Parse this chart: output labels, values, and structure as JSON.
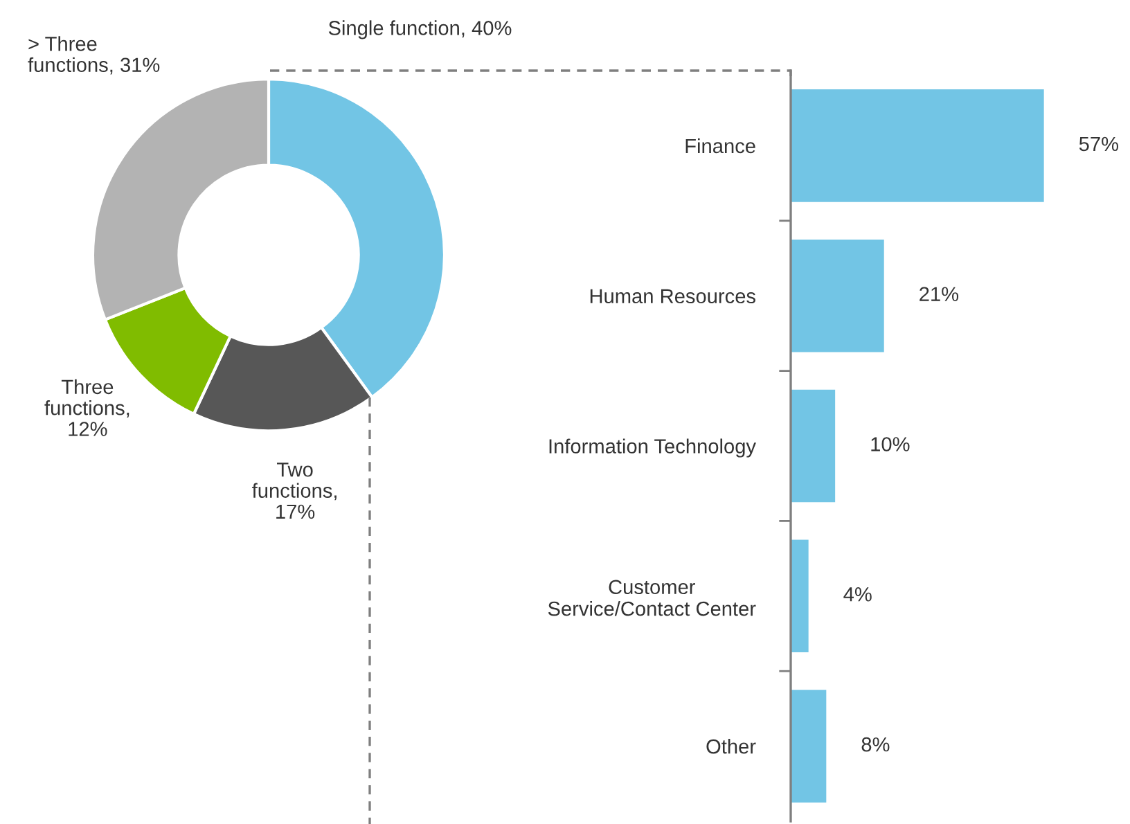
{
  "chart_data": [
    {
      "type": "donut",
      "categories": [
        "Single function, 40%",
        "Two\nfunctions,\n17%",
        "Three\nfunctions,\n12%",
        "> Three\nfunctions, 31%"
      ],
      "values": [
        40,
        17,
        12,
        31
      ],
      "colors": [
        "#72c5e5",
        "#575757",
        "#80bc00",
        "#b3b3b3"
      ]
    },
    {
      "type": "bar",
      "orientation": "horizontal",
      "categories": [
        "Finance",
        "Human Resources",
        "Information Technology",
        "Customer\nService/Contact Center",
        "Other"
      ],
      "values": [
        57,
        21,
        10,
        4,
        8
      ],
      "color": "#72c5e5",
      "value_labels": [
        "57%",
        "21%",
        "10%",
        "4%",
        "8%"
      ]
    }
  ]
}
